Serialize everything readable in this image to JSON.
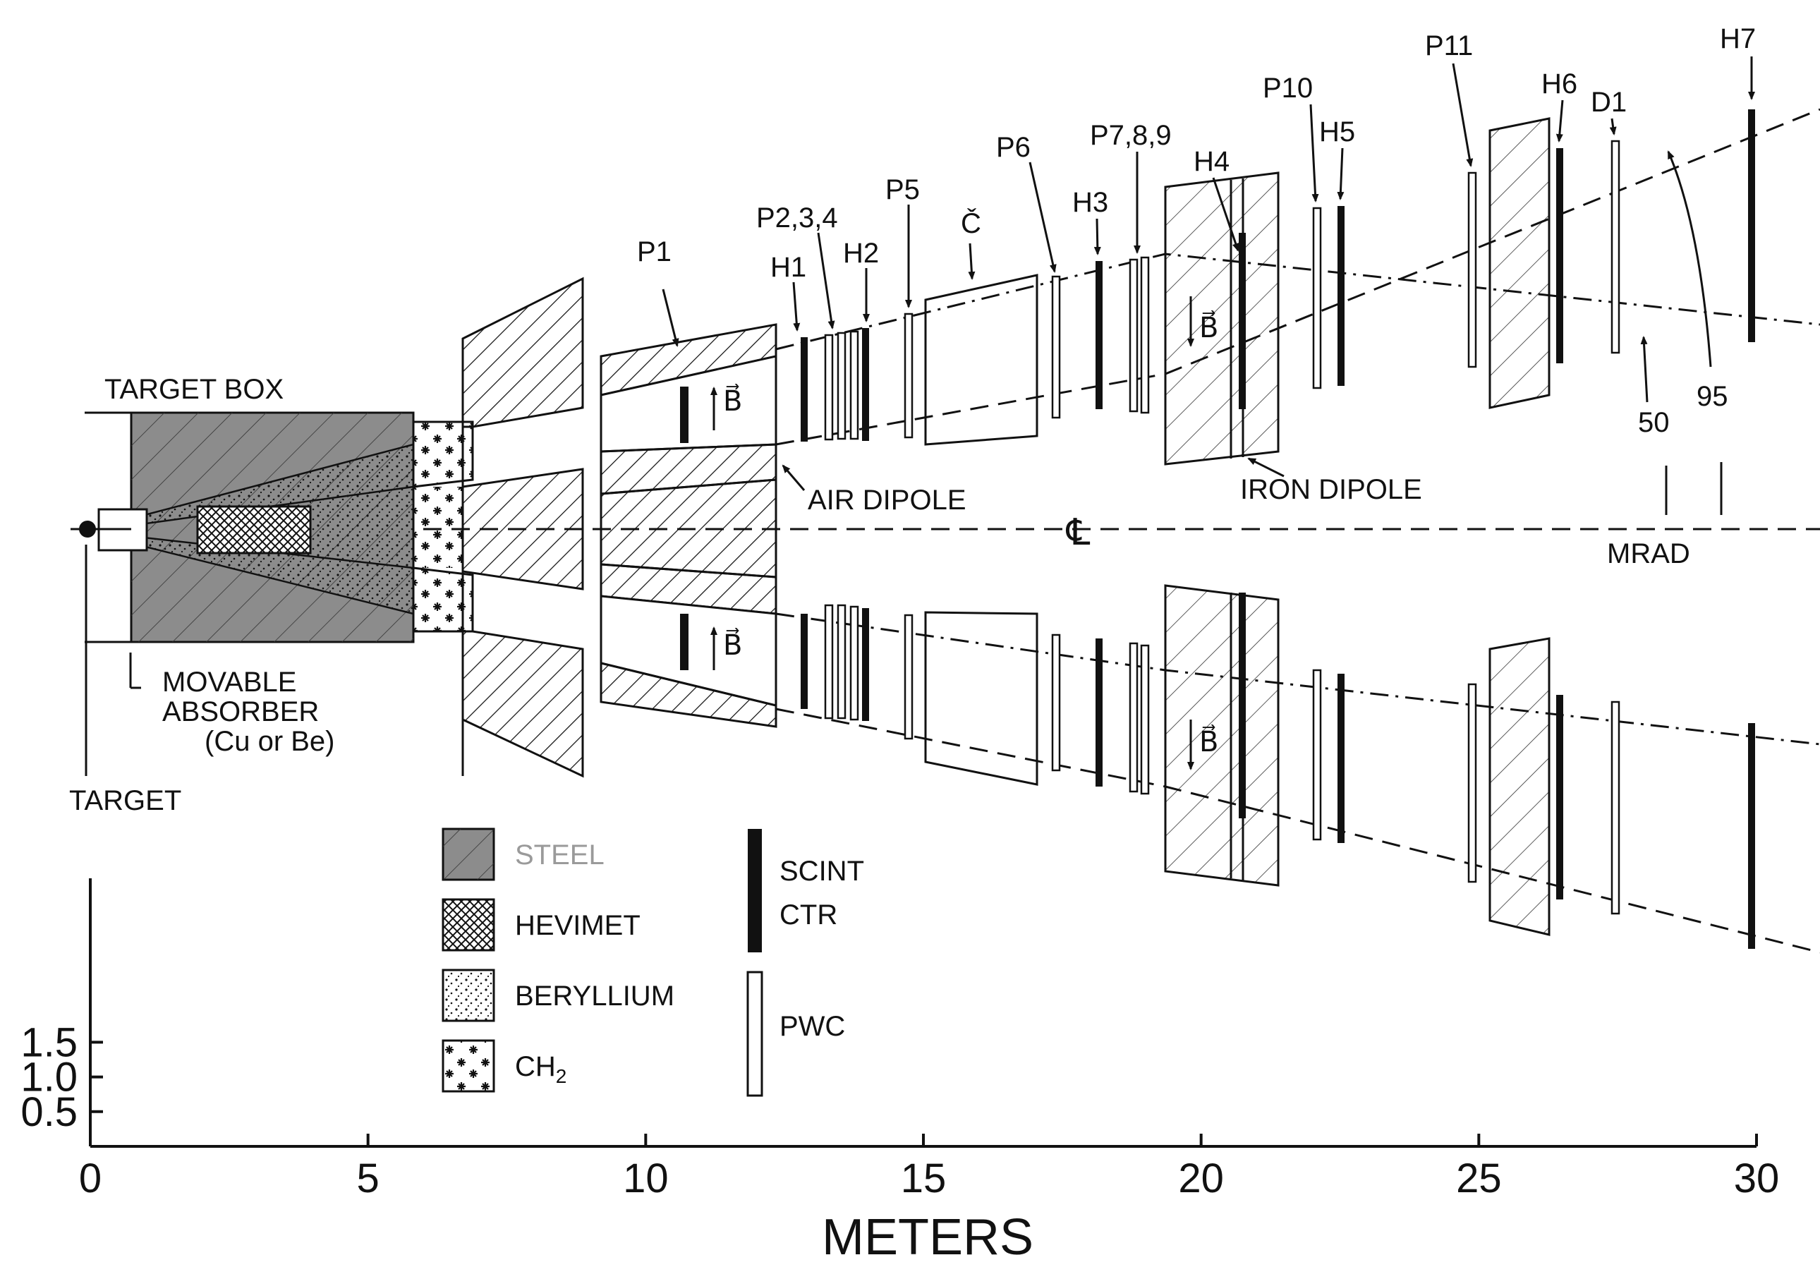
{
  "labels": {
    "target_box": "TARGET  BOX",
    "movable_absorber": "MOVABLE",
    "absorber": "ABSORBER",
    "absorber_material": "(Cu or Be)",
    "target": "TARGET",
    "air_dipole": "AIR DIPOLE",
    "iron_dipole": "IRON DIPOLE",
    "centerline": "℄",
    "mrad": "MRAD",
    "angle_50": "50",
    "angle_95": "95",
    "b_field": "B⃗",
    "cerenkov": "Č"
  },
  "detectors": {
    "p1": "P1",
    "h1": "H1",
    "p234": "P2,3,4",
    "h2": "H2",
    "p5": "P5",
    "p6": "P6",
    "h3": "H3",
    "p789": "P7,8,9",
    "h4": "H4",
    "p10": "P10",
    "h5": "H5",
    "p11": "P11",
    "h6": "H6",
    "d1": "D1",
    "h7": "H7"
  },
  "legend": {
    "steel": "STEEL",
    "hevimet": "HEVIMET",
    "beryllium": "BERYLLIUM",
    "ch2_base": "CH",
    "ch2_sub": "2",
    "scint": "SCINT",
    "ctr": "CTR",
    "pwc": "PWC"
  },
  "axes": {
    "x_title": "METERS",
    "x_ticks": [
      "0",
      "5",
      "10",
      "15",
      "20",
      "25",
      "30"
    ],
    "y_ticks": [
      "0.5",
      "1.0",
      "1.5"
    ]
  },
  "colors": {
    "ink": "#111111",
    "steel_fill": "#8c8c8c",
    "steel_label": "#9a9a9a"
  }
}
